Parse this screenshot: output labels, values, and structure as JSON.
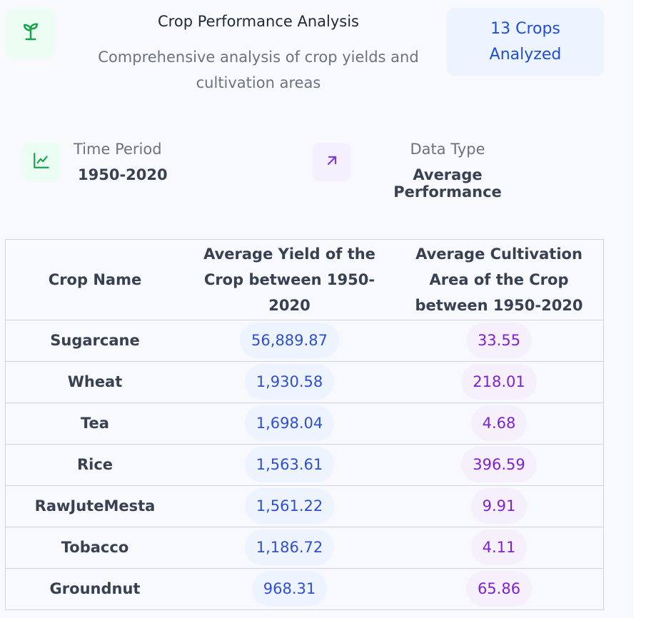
{
  "header": {
    "logo_icon": "sprout-icon",
    "title": "Crop Performance Analysis",
    "subtitle": "Comprehensive analysis of crop yields and cultivation areas",
    "crops_badge": "13 Crops Analyzed"
  },
  "info": {
    "time_period": {
      "icon": "line-chart-icon",
      "label": "Time Period",
      "value": "1950-2020"
    },
    "data_type": {
      "icon": "arrow-up-right-icon",
      "label": "Data Type",
      "value": "Average Performance"
    }
  },
  "table": {
    "headers": [
      "Crop Name",
      "Average Yield of the Crop between 1950-2020",
      "Average Cultivation Area of the Crop between 1950-2020"
    ],
    "rows": [
      {
        "crop": "Sugarcane",
        "yield": "56,889.87",
        "area": "33.55"
      },
      {
        "crop": "Wheat",
        "yield": "1,930.58",
        "area": "218.01"
      },
      {
        "crop": "Tea",
        "yield": "1,698.04",
        "area": "4.68"
      },
      {
        "crop": "Rice",
        "yield": "1,563.61",
        "area": "396.59"
      },
      {
        "crop": "RawJuteMesta",
        "yield": "1,561.22",
        "area": "9.91"
      },
      {
        "crop": "Tobacco",
        "yield": "1,186.72",
        "area": "4.11"
      },
      {
        "crop": "Groundnut",
        "yield": "968.31",
        "area": "65.86"
      }
    ]
  },
  "colors": {
    "yield_text": "#2f4fd0",
    "area_text": "#7e22ce",
    "badge_text": "#1d4ed8",
    "accent_green": "#16a34a"
  }
}
